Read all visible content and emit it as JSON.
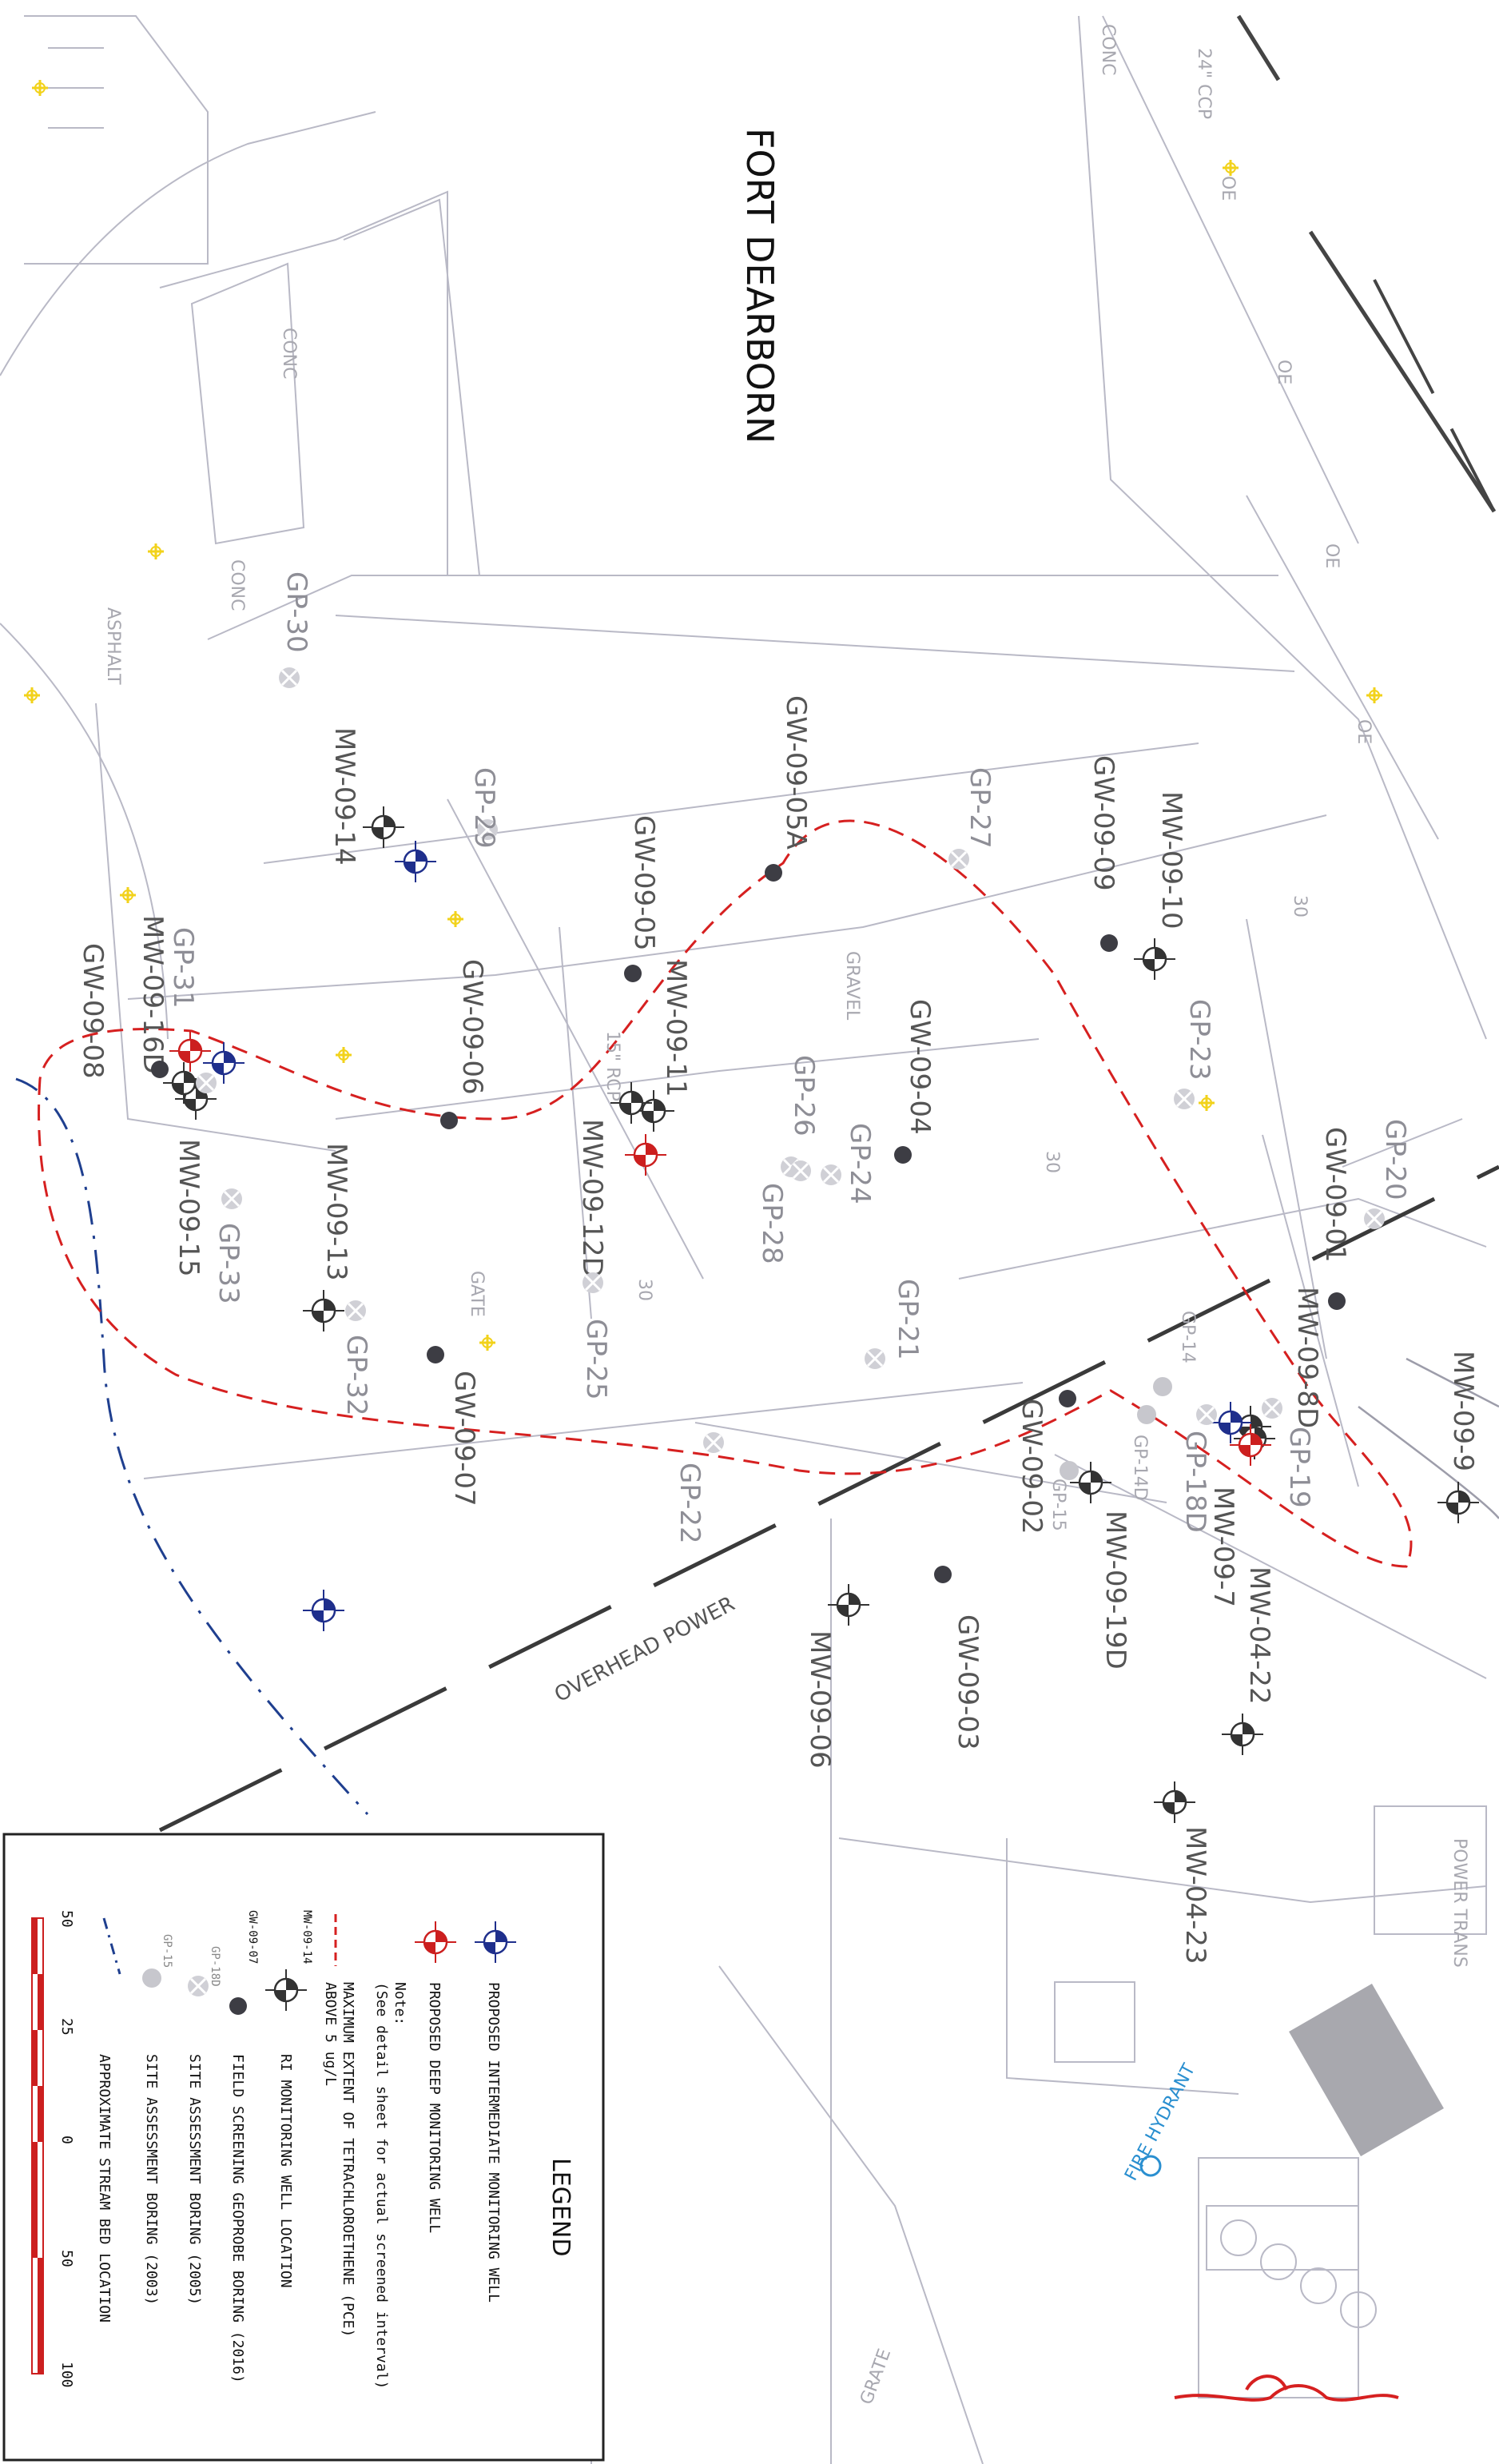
{
  "title": "FORT DEARBORN",
  "area_labels": {
    "conc_1": "CONC",
    "conc_2": "CONC",
    "conc_3": "CONC",
    "asphalt": "ASPHALT",
    "gravel": "GRAVEL",
    "gate": "GATE",
    "pipe_24": "24\" CCP",
    "pipe_15": "15\" RCP",
    "contour_30a": "30",
    "contour_30b": "30",
    "contour_30c": "30",
    "overhead_power": "OVERHEAD POWER",
    "fire_hydrant": "FIRE HYDRANT",
    "power_transformer": "POWER TRANS",
    "grate": "GRATE",
    "oe_1": "OE",
    "oe_2": "OE",
    "oe_3": "OE",
    "oe_4": "OE"
  },
  "wells": {
    "mw_09_14": "MW-09-14",
    "mw_09_10": "MW-09-10",
    "mw_09_11": "MW-09-11",
    "mw_09_12d": "MW-09-12D",
    "mw_09_13": "MW-09-13",
    "mw_09_15": "MW-09-15",
    "mw_09_16d": "MW-09-16D",
    "mw_09_9": "MW-09-9",
    "mw_09_8d": "MW-09-8D",
    "mw_09_18d": "GP-18D",
    "mw_09_7": "MW-09-7",
    "mw_09_19d": "MW-09-19D",
    "mw_09_06": "MW-09-06",
    "mw_04_22": "MW-04-22",
    "mw_04_23": "MW-04-23"
  },
  "geoprobes": {
    "gw_09_05a": "GW-09-05A",
    "gw_09_09": "GW-09-09",
    "gw_09_05": "GW-09-05",
    "gw_09_04": "GW-09-04",
    "gw_09_06": "GW-09-06",
    "gw_09_08": "GW-09-08",
    "gw_09_07": "GW-09-07",
    "gw_09_01": "GW-09-01",
    "gw_09_02": "GW-09-02",
    "gw_09_03": "GW-09-03"
  },
  "borings": {
    "gp_30": "GP-30",
    "gp_29": "GP-29",
    "gp_27": "GP-27",
    "gp_31": "GP-31",
    "gp_26": "GP-26",
    "gp_24": "GP-24",
    "gp_28": "GP-28",
    "gp_23": "GP-23",
    "gp_20": "GP-20",
    "gp_33": "GP-33",
    "gp_32": "GP-32",
    "gp_25": "GP-25",
    "gp_21": "GP-21",
    "gp_22": "GP-22",
    "gp_19": "GP-19",
    "gp_14": "GP-14",
    "gp_14d": "GP-14D",
    "gp_15": "GP-15"
  },
  "legend": {
    "title": "LEGEND",
    "items": {
      "intermediate": "PROPOSED INTERMEDIATE MONITORING WELL",
      "deep": "PROPOSED DEEP MONITORING WELL",
      "note_1": "Note:",
      "note_2": "(See detail sheet for actual screened interval)",
      "pce_1": "MAXIMUM EXTENT OF TETRACHLOROETHENE (PCE)",
      "pce_2": "ABOVE 5 ug/L",
      "ri_well": "RI MONITORING WELL LOCATION",
      "ri_well_code": "MW-09-14",
      "field_screen": "FIELD SCREENING GEOPROBE BORING (2016)",
      "field_screen_code": "GW-09-07",
      "site_2005": "SITE ASSESSMENT BORING (2005)",
      "site_2005_code": "GP-18D",
      "site_2003": "SITE ASSESSMENT BORING (2003)",
      "site_2003_code": "GP-15",
      "stream": "APPROXIMATE STREAM BED LOCATION"
    },
    "scale": {
      "s0": "50",
      "s1": "25",
      "s2": "0",
      "s3": "50",
      "s4": "100"
    }
  },
  "colors": {
    "pce_contour": "#d62020",
    "deep_well": "#cc1f1f",
    "intermediate_well": "#1f2f8c",
    "stream": "#1f3f8f",
    "hydrant": "#2a8fd0"
  }
}
